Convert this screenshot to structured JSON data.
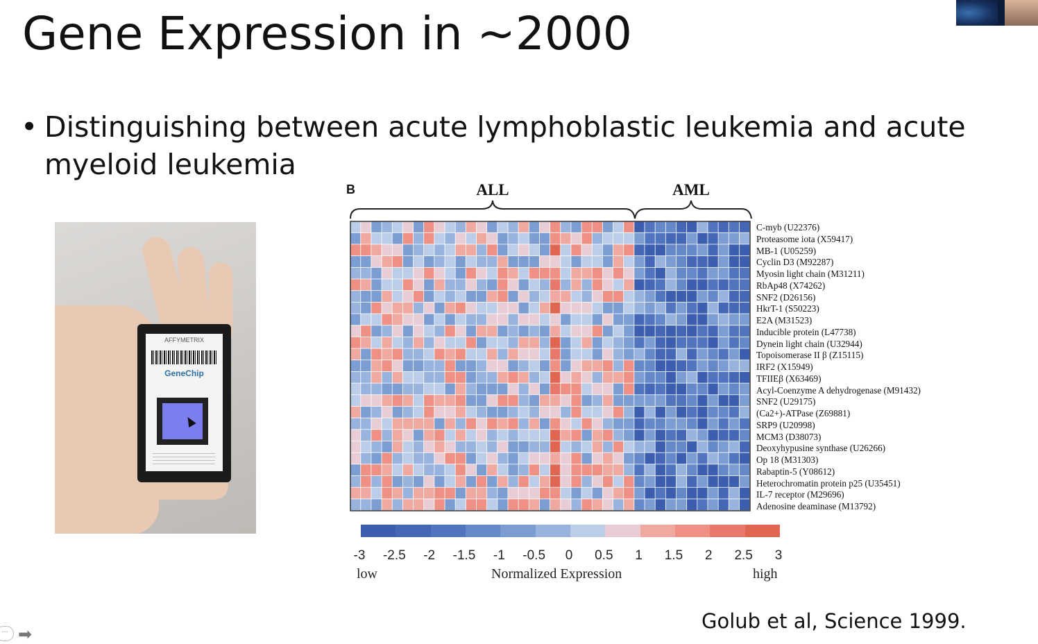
{
  "slide": {
    "title": "Gene Expression in ~2000",
    "bullet_marker": "•",
    "bullet_text": "Distinguishing between acute lymphoblastic leukemia and acute myeloid leukemia",
    "citation": "Golub et al, Science 1999."
  },
  "photo": {
    "chip_brand": "AFFYMETRIX",
    "chip_name": "GeneChip"
  },
  "figure": {
    "panel_label": "B",
    "group_left": "ALL",
    "group_right": "AML",
    "genes": [
      "C-myb (U22376)",
      "Proteasome iota (X59417)",
      "MB-1 (U05259)",
      "Cyclin D3 (M92287)",
      "Myosin light chain (M31211)",
      "RbAp48 (X74262)",
      "SNF2 (D26156)",
      "HkrT-1 (S50223)",
      "E2A (M31523)",
      "Inducible protein (L47738)",
      "Dynein light chain (U32944)",
      "Topoisomerase II β (Z15115)",
      "IRF2 (X15949)",
      "TFIIEβ (X63469)",
      "Acyl-Coenzyme A dehydrogenase (M91432)",
      "SNF2 (U29175)",
      "(Ca2+)-ATPase (Z69881)",
      "SRP9 (U20998)",
      "MCM3 (D38073)",
      "Deoxyhypusine synthase (U26266)",
      "Op 18 (M31303)",
      "Rabaptin-5 (Y08612)",
      "Heterochromatin protein p25 (U35451)",
      "IL-7 receptor (M29696)",
      "Adenosine deaminase (M13792)"
    ],
    "colorbar": {
      "ticks": [
        "-3",
        "-2.5",
        "-2",
        "-1.5",
        "-1",
        "-0.5",
        "0",
        "0.5",
        "1",
        "1.5",
        "2",
        "2.5",
        "3"
      ],
      "low_label": "low",
      "high_label": "high",
      "axis_label": "Normalized Expression",
      "colors": [
        "#3b5fae",
        "#4468b6",
        "#5075be",
        "#6488c8",
        "#7b9dd2",
        "#98b4de",
        "#bccde9",
        "#e8cdd4",
        "#f0a9a0",
        "#ee9184",
        "#e8786a",
        "#e06652"
      ]
    },
    "colors": {
      "low": "#3b5fae",
      "mid": "#e7dde3",
      "high": "#de5b45"
    }
  },
  "controls": {
    "more_icon": "more-icon",
    "next_icon": "next-slide-arrow-icon"
  }
}
